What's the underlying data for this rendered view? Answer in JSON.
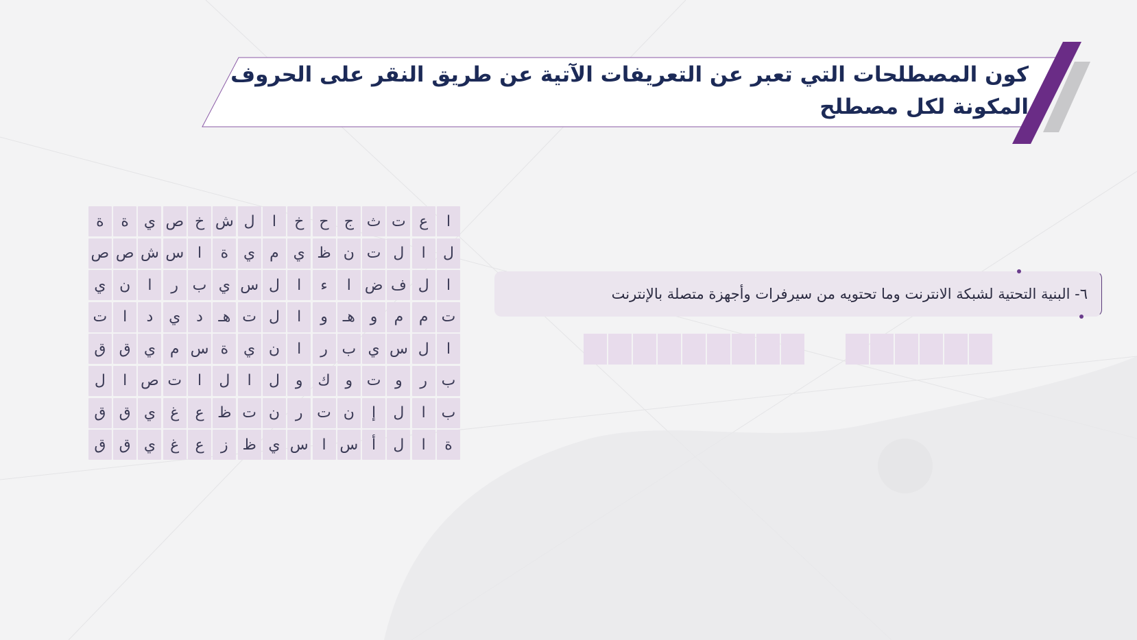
{
  "header": {
    "title": "كون المصطلحات التي تعبر عن التعريفات الآتية عن طريق النقر على الحروف المكونة لكل مصطلح"
  },
  "grid": {
    "rows": [
      [
        "ا",
        "ع",
        "ت",
        "ث",
        "ج",
        "ح",
        "خ",
        "ا",
        "ل",
        "ش",
        "خ",
        "ص",
        "ي",
        "ة",
        "ة"
      ],
      [
        "ل",
        "ا",
        "ل",
        "ت",
        "ن",
        "ظ",
        "ي",
        "م",
        "ي",
        "ة",
        "ا",
        "س",
        "ش",
        "ص",
        "ص"
      ],
      [
        "ا",
        "ل",
        "ف",
        "ض",
        "ا",
        "ء",
        "ا",
        "ل",
        "س",
        "ي",
        "ب",
        "ر",
        "ا",
        "ن",
        "ي"
      ],
      [
        "ت",
        "م",
        "م",
        "و",
        "هـ",
        "و",
        "ا",
        "ل",
        "ت",
        "هـ",
        "د",
        "ي",
        "د",
        "ا",
        "ت"
      ],
      [
        "ا",
        "ل",
        "س",
        "ي",
        "ب",
        "ر",
        "ا",
        "ن",
        "ي",
        "ة",
        "س",
        "م",
        "ي",
        "ق",
        "ق"
      ],
      [
        "ب",
        "ر",
        "و",
        "ت",
        "و",
        "ك",
        "و",
        "ل",
        "ا",
        "ل",
        "ا",
        "ت",
        "ص",
        "ا",
        "ل"
      ],
      [
        "ب",
        "ا",
        "ل",
        "إ",
        "ن",
        "ت",
        "ر",
        "ن",
        "ت",
        "ظ",
        "ع",
        "غ",
        "ي",
        "ق",
        "ق"
      ],
      [
        "ة",
        "ا",
        "ل",
        "أ",
        "س",
        "ا",
        "س",
        "ي",
        "ظ",
        "ز",
        "ع",
        "غ",
        "ي",
        "ق",
        "ق"
      ]
    ]
  },
  "question": {
    "text": "٦- البنية التحتية لشبكة الانترنت وما تحتويه من سيرفرات وأجهزة متصلة بالإنترنت"
  }
}
